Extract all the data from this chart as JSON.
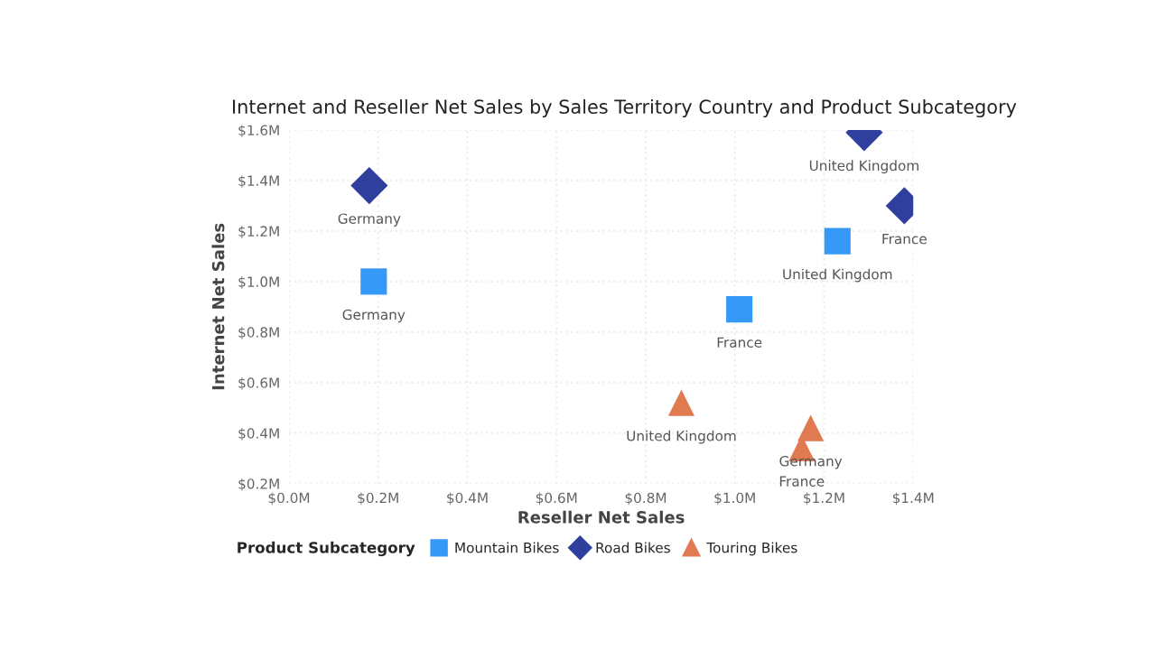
{
  "chart_data": {
    "type": "scatter",
    "title": "Internet and Reseller Net Sales by Sales Territory Country and Product Subcategory",
    "xlabel": "Reseller Net Sales",
    "ylabel": "Internet Net Sales",
    "legend_title": "Product Subcategory",
    "series": [
      {
        "name": "Mountain Bikes",
        "color": "#3599f8",
        "marker": "square",
        "x": [
          0.19,
          1.01,
          1.23
        ],
        "values": [
          1.0,
          0.89,
          1.16
        ]
      },
      {
        "name": "Road Bikes",
        "color": "#2f3f9e",
        "marker": "diamond",
        "x": [
          0.18,
          1.29,
          1.38
        ],
        "values": [
          1.38,
          1.59,
          1.3
        ]
      },
      {
        "name": "Touring Bikes",
        "color": "#e07a50",
        "marker": "triangle",
        "x": [
          0.88,
          1.17,
          1.15
        ],
        "values": [
          0.52,
          0.42,
          0.34
        ]
      }
    ],
    "annotations": [
      {
        "text": "Germany",
        "x": 0.19,
        "y": 1.0
      },
      {
        "text": "France",
        "x": 1.01,
        "y": 0.89
      },
      {
        "text": "United Kingdom",
        "x": 1.23,
        "y": 1.16
      },
      {
        "text": "Germany",
        "x": 0.18,
        "y": 1.38
      },
      {
        "text": "United Kingdom",
        "x": 1.29,
        "y": 1.59
      },
      {
        "text": "France",
        "x": 1.38,
        "y": 1.3
      },
      {
        "text": "United Kingdom",
        "x": 0.88,
        "y": 0.52
      },
      {
        "text": "Germany",
        "x": 1.17,
        "y": 0.42
      },
      {
        "text": "France",
        "x": 1.15,
        "y": 0.34
      }
    ],
    "xlim": [
      0,
      1.4
    ],
    "ylim": [
      0.2,
      1.6
    ],
    "xticks": [
      {
        "value": 0,
        "label": "$0.0M"
      },
      {
        "value": 0.2,
        "label": "$0.2M"
      },
      {
        "value": 0.4,
        "label": "$0.4M"
      },
      {
        "value": 0.6,
        "label": "$0.6M"
      },
      {
        "value": 0.8,
        "label": "$0.8M"
      },
      {
        "value": 1.0,
        "label": "$1.0M"
      },
      {
        "value": 1.2,
        "label": "$1.2M"
      },
      {
        "value": 1.4,
        "label": "$1.4M"
      }
    ],
    "yticks": [
      {
        "value": 0.2,
        "label": "$0.2M"
      },
      {
        "value": 0.4,
        "label": "$0.4M"
      },
      {
        "value": 0.6,
        "label": "$0.6M"
      },
      {
        "value": 0.8,
        "label": "$0.8M"
      },
      {
        "value": 1.0,
        "label": "$1.0M"
      },
      {
        "value": 1.2,
        "label": "$1.2M"
      },
      {
        "value": 1.4,
        "label": "$1.4M"
      },
      {
        "value": 1.6,
        "label": "$1.6M"
      }
    ],
    "grid": true,
    "legend": "bottom left"
  }
}
